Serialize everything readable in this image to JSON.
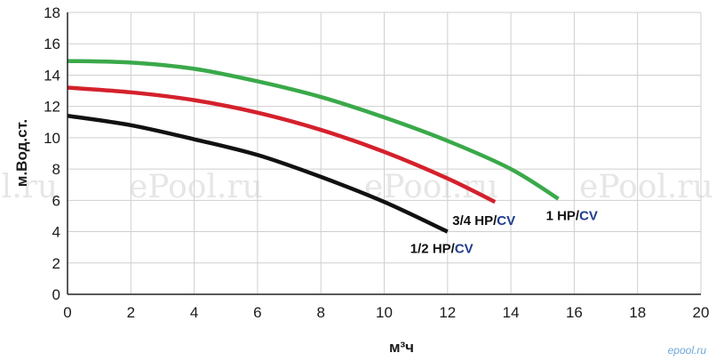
{
  "chart_data": {
    "type": "line",
    "title": "",
    "xlabel": "м³ч",
    "ylabel": "м.Вод.ст.",
    "xlim": [
      0,
      20
    ],
    "ylim": [
      0,
      18
    ],
    "x_ticks": [
      "0",
      "2",
      "4",
      "6",
      "8",
      "10",
      "12",
      "14",
      "16",
      "18",
      "20"
    ],
    "y_ticks": [
      "0",
      "2",
      "4",
      "6",
      "8",
      "10",
      "12",
      "14",
      "16",
      "18"
    ],
    "grid": true,
    "series": [
      {
        "name": "1 HP/CV",
        "name_parts": [
          "1 HP/",
          "CV"
        ],
        "color": "#3aa94a",
        "points": [
          [
            0,
            14.9
          ],
          [
            2,
            14.8
          ],
          [
            4,
            14.4
          ],
          [
            6,
            13.6
          ],
          [
            8,
            12.6
          ],
          [
            10,
            11.3
          ],
          [
            12,
            9.8
          ],
          [
            14,
            8.0
          ],
          [
            15.5,
            6.1
          ]
        ]
      },
      {
        "name": "3/4 HP/CV",
        "name_parts": [
          "3/4 HP/",
          "CV"
        ],
        "color": "#d4212c",
        "points": [
          [
            0,
            13.2
          ],
          [
            2,
            12.9
          ],
          [
            4,
            12.4
          ],
          [
            6,
            11.6
          ],
          [
            8,
            10.5
          ],
          [
            10,
            9.1
          ],
          [
            12,
            7.4
          ],
          [
            13.5,
            5.9
          ]
        ]
      },
      {
        "name": "1/2 HP/CV",
        "name_parts": [
          "1/2 HP/",
          "CV"
        ],
        "color": "#111111",
        "points": [
          [
            0,
            11.4
          ],
          [
            2,
            10.8
          ],
          [
            4,
            9.9
          ],
          [
            6,
            8.9
          ],
          [
            8,
            7.5
          ],
          [
            10,
            5.9
          ],
          [
            12,
            4.0
          ]
        ]
      }
    ]
  },
  "watermarks": [
    "ol.ru",
    "ePool.ru",
    "ePool.ru",
    "ePool.ru",
    "ePool.ru"
  ],
  "logo": "epool.ru"
}
